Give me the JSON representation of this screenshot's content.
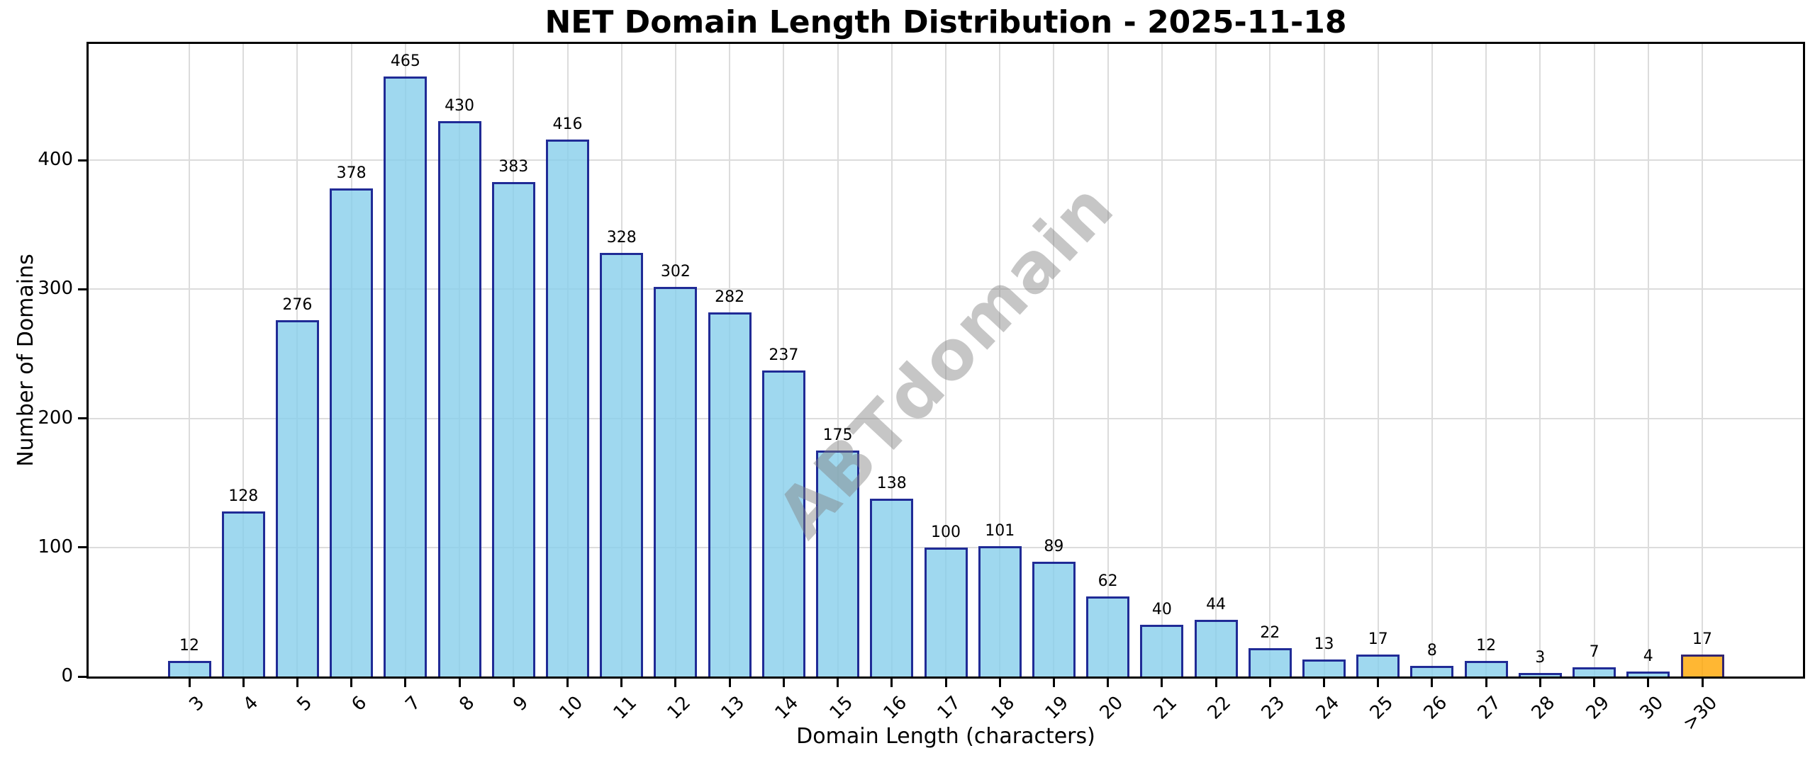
{
  "title": "NET Domain Length Distribution - 2025-11-18",
  "watermark": "ABTdomain",
  "chart_data": {
    "type": "bar",
    "title": "NET Domain Length Distribution - 2025-11-18",
    "xlabel": "Domain Length (characters)",
    "ylabel": "Number of Domains",
    "categories": [
      "3",
      "4",
      "5",
      "6",
      "7",
      "8",
      "9",
      "10",
      "11",
      "12",
      "13",
      "14",
      "15",
      "16",
      "17",
      "18",
      "19",
      "20",
      "21",
      "22",
      "23",
      "24",
      "25",
      "26",
      "27",
      "28",
      "29",
      "30",
      ">30"
    ],
    "values": [
      12,
      128,
      276,
      378,
      465,
      430,
      383,
      416,
      328,
      302,
      282,
      237,
      175,
      138,
      100,
      101,
      89,
      62,
      40,
      44,
      22,
      13,
      17,
      8,
      12,
      3,
      7,
      4,
      17
    ],
    "ylim": [
      0,
      490
    ],
    "yticks": [
      0,
      100,
      200,
      300,
      400
    ],
    "grid": true,
    "legend": "none",
    "xtick_rotation_deg": 45,
    "colors": {
      "bar_fill": "#87CEEB",
      "bar_fill_last": "#FFA500",
      "bar_edge": "#000080",
      "bar_alpha": 0.8,
      "grid": "#DCDCDC",
      "spine": "#000000",
      "watermark": "#808080"
    }
  }
}
